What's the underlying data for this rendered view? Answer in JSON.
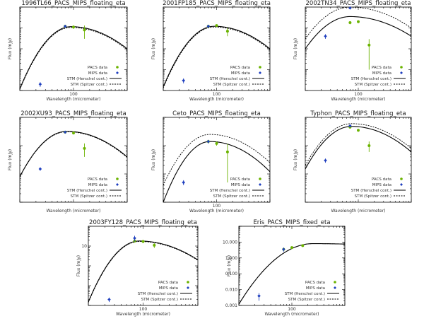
{
  "chart_data": [
    {
      "type": "scatter",
      "title": "1996TL66_PACS_MIPS_floating_eta",
      "xlabel": "Wavelength (micrometer)",
      "ylabel": "Flux (mJy)",
      "xlim": [
        10,
        1000
      ],
      "ylim": [
        0.01,
        100
      ],
      "ytick_labels": [],
      "xtick_labels": [
        "100"
      ],
      "legend": [
        "PACS data",
        "MIPS data",
        "STM (Herschel cont.)",
        "STM (Spitzer cont.)"
      ],
      "series": [
        {
          "name": "PACS data",
          "x": [
            70,
            100,
            160
          ],
          "y": [
            12,
            11,
            8
          ],
          "err": [
            2,
            2,
            5
          ]
        },
        {
          "name": "MIPS data",
          "x": [
            24,
            70
          ],
          "y": [
            0.02,
            12
          ],
          "err": [
            0.005,
            2
          ]
        },
        {
          "name": "STM (Herschel cont.)",
          "peak_x": 90,
          "peak_y": 11.5,
          "low_y": 0.012,
          "high_y": 1.0
        },
        {
          "name": "STM (Spitzer cont.)",
          "peak_x": 90,
          "peak_y": 10.5,
          "low_y": 0.011,
          "high_y": 0.9
        }
      ]
    },
    {
      "type": "scatter",
      "title": "2001FP185_PACS_MIPS_floating_eta",
      "xlabel": "Wavelength (micrometer)",
      "ylabel": "Flux (mJy)",
      "xlim": [
        10,
        1000
      ],
      "ylim": [
        0.01,
        100
      ],
      "ytick_labels": [],
      "xtick_labels": [
        "100"
      ],
      "legend": [
        "PACS data",
        "MIPS data",
        "STM (Herschel cont.)",
        "STM (Spitzer cont.)"
      ],
      "series": [
        {
          "name": "PACS data",
          "x": [
            70,
            100,
            160
          ],
          "y": [
            12,
            13,
            7
          ],
          "err": [
            1.5,
            1.5,
            3
          ]
        },
        {
          "name": "MIPS data",
          "x": [
            24,
            70
          ],
          "y": [
            0.03,
            12
          ],
          "err": [
            0.008,
            2
          ]
        },
        {
          "name": "STM (Herschel cont.)",
          "peak_x": 90,
          "peak_y": 12,
          "low_y": 0.015,
          "high_y": 1.0
        },
        {
          "name": "STM (Spitzer cont.)",
          "peak_x": 90,
          "peak_y": 11,
          "low_y": 0.013,
          "high_y": 0.9
        }
      ]
    },
    {
      "type": "scatter",
      "title": "2002TN34_PACS_MIPS_floating_eta",
      "xlabel": "Wavelength (micrometer)",
      "ylabel": "Flux (mJy)",
      "xlim": [
        10,
        1000
      ],
      "ylim": [
        0.01,
        100
      ],
      "ytick_labels": [],
      "xtick_labels": [
        "100"
      ],
      "legend": [
        "PACS data",
        "MIPS data",
        "STM (Herschel cont.)",
        "STM (Spitzer cont.)"
      ],
      "series": [
        {
          "name": "PACS data",
          "x": [
            70,
            100,
            160
          ],
          "y": [
            18,
            20,
            1.5
          ],
          "err": [
            3,
            3,
            1.4
          ]
        },
        {
          "name": "MIPS data",
          "x": [
            24,
            70
          ],
          "y": [
            4,
            90
          ],
          "err": [
            1,
            10
          ]
        },
        {
          "name": "STM (Herschel cont.)",
          "peak_x": 70,
          "peak_y": 35,
          "low_y": 1.0,
          "high_y": 4.0
        },
        {
          "name": "STM (Spitzer cont.)",
          "peak_x": 70,
          "peak_y": 100,
          "low_y": 3.0,
          "high_y": 10
        }
      ]
    },
    {
      "type": "scatter",
      "title": "2002XU93_PACS_MIPS_floating_eta",
      "xlabel": "Wavelength (micrometer)",
      "ylabel": "Flux (mJy)",
      "xlim": [
        10,
        1000
      ],
      "ylim": [
        0.1,
        100
      ],
      "ytick_labels": [],
      "xtick_labels": [],
      "legend": [
        "PACS data",
        "MIPS data",
        "STM (Herschel cont.)",
        "STM (Spitzer cont.)"
      ],
      "series": [
        {
          "name": "PACS data",
          "x": [
            70,
            100,
            160
          ],
          "y": [
            30,
            28,
            8
          ],
          "err": [
            3,
            3,
            4
          ]
        },
        {
          "name": "MIPS data",
          "x": [
            24,
            70
          ],
          "y": [
            1.5,
            30
          ],
          "err": [
            0.2,
            3
          ]
        },
        {
          "name": "STM (Herschel cont.)",
          "peak_x": 75,
          "peak_y": 32,
          "low_y": 0.8,
          "high_y": 4.0
        },
        {
          "name": "STM (Spitzer cont.)",
          "peak_x": 75,
          "peak_y": 31,
          "low_y": 0.78,
          "high_y": 3.8
        }
      ]
    },
    {
      "type": "scatter",
      "title": "Ceto_PACS_MIPS_floating_eta",
      "xlabel": "Wavelength (micrometer)",
      "ylabel": "Flux (mJy)",
      "xlim": [
        10,
        1000
      ],
      "ylim": [
        0.1,
        100
      ],
      "ytick_labels": [],
      "xtick_labels": [
        "100"
      ],
      "legend": [
        "PACS data",
        "MIPS data",
        "STM (Herschel cont.)",
        "STM (Spitzer cont.)"
      ],
      "series": [
        {
          "name": "PACS data",
          "x": [
            70,
            100,
            160
          ],
          "y": [
            14,
            12,
            6
          ],
          "err": [
            2,
            2,
            5.5
          ]
        },
        {
          "name": "MIPS data",
          "x": [
            24,
            70
          ],
          "y": [
            0.5,
            14
          ],
          "err": [
            0.1,
            2
          ]
        },
        {
          "name": "STM (Herschel cont.)",
          "peak_x": 75,
          "peak_y": 14,
          "low_y": 0.1,
          "high_y": 1.2
        },
        {
          "name": "STM (Spitzer cont.)",
          "peak_x": 75,
          "peak_y": 25,
          "low_y": 0.4,
          "high_y": 2.5
        }
      ]
    },
    {
      "type": "scatter",
      "title": "Typhon_PACS_MIPS_floating_eta",
      "xlabel": "Wavelength (micrometer)",
      "ylabel": "Flux (mJy)",
      "xlim": [
        10,
        1000
      ],
      "ylim": [
        0.1,
        100
      ],
      "ytick_labels": [],
      "xtick_labels": [],
      "legend": [
        "PACS data",
        "MIPS data",
        "STM (Herschel cont.)",
        "STM (Spitzer cont.)"
      ],
      "series": [
        {
          "name": "PACS data",
          "x": [
            70,
            100,
            160
          ],
          "y": [
            45,
            35,
            10
          ],
          "err": [
            4,
            4,
            4
          ]
        },
        {
          "name": "MIPS data",
          "x": [
            24,
            70
          ],
          "y": [
            3,
            50
          ],
          "err": [
            0.5,
            5
          ]
        },
        {
          "name": "STM (Herschel cont.)",
          "peak_x": 75,
          "peak_y": 48,
          "low_y": 1.5,
          "high_y": 6.0
        },
        {
          "name": "STM (Spitzer cont.)",
          "peak_x": 75,
          "peak_y": 60,
          "low_y": 2.0,
          "high_y": 8.0
        }
      ]
    },
    {
      "type": "scatter",
      "title": "2003FY128_PACS_MIPS_floating_eta",
      "xlabel": "Wavelength (micrometer)",
      "ylabel": "Flux (mJy)",
      "xlim": [
        10,
        1000
      ],
      "ylim": [
        0.01,
        100
      ],
      "ytick_labels": [
        "10"
      ],
      "xtick_labels": [
        "100"
      ],
      "legend": [
        "PACS data",
        "MIPS data",
        "STM (Herschel cont.)",
        "STM (Spitzer cont.)"
      ],
      "series": [
        {
          "name": "PACS data",
          "x": [
            70,
            100,
            160
          ],
          "y": [
            18,
            17,
            11
          ],
          "err": [
            3,
            3,
            3
          ]
        },
        {
          "name": "MIPS data",
          "x": [
            24,
            70
          ],
          "y": [
            0.02,
            25
          ],
          "err": [
            0.005,
            8
          ]
        },
        {
          "name": "STM (Herschel cont.)",
          "peak_x": 85,
          "peak_y": 18,
          "low_y": 0.015,
          "high_y": 2.0
        },
        {
          "name": "STM (Spitzer cont.)",
          "peak_x": 85,
          "peak_y": 17,
          "low_y": 0.014,
          "high_y": 1.9
        }
      ]
    },
    {
      "type": "scatter",
      "title": "Eris_PACS_MIPS_fixed_eta",
      "xlabel": "Wavelength (micrometer)",
      "ylabel": "Flux (mJy)",
      "xlim": [
        10,
        1000
      ],
      "ylim": [
        0.001,
        100
      ],
      "ytick_labels": [
        "10.000",
        "1.000",
        "0.100",
        "0.010",
        "0.001"
      ],
      "xtick_labels": [
        "100"
      ],
      "legend": [
        "PACS data",
        "MIPS data",
        "STM (Herschel cont.)",
        "STM (Spitzer cont.)"
      ],
      "series": [
        {
          "name": "PACS data",
          "x": [
            70,
            100,
            160
          ],
          "y": [
            3.5,
            4.5,
            6.0
          ],
          "err": [
            0.8,
            0.8,
            1
          ]
        },
        {
          "name": "MIPS data",
          "x": [
            24,
            70
          ],
          "y": [
            0.004,
            3.5
          ],
          "err": [
            0.002,
            1
          ]
        },
        {
          "name": "STM (Herschel cont.)",
          "peak_x": 250,
          "peak_y": 8,
          "low_y": 0.0012,
          "high_y": 7.5
        },
        {
          "name": "STM (Spitzer cont.)",
          "peak_x": 250,
          "peak_y": 8,
          "low_y": 0.0012,
          "high_y": 7.5
        }
      ]
    }
  ],
  "colors": {
    "pacs": "#6bb300",
    "mips": "#1f3fbf",
    "axis": "#000000"
  }
}
